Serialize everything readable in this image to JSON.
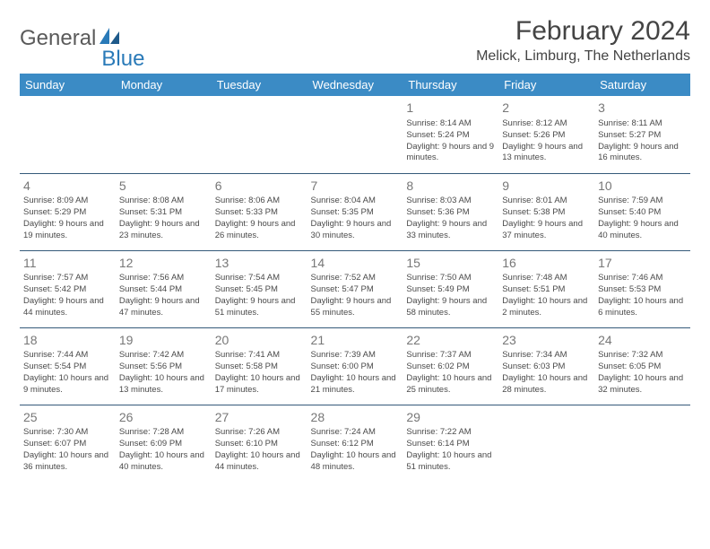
{
  "logo": {
    "part1": "General",
    "part2": "Blue"
  },
  "title": "February 2024",
  "location": "Melick, Limburg, The Netherlands",
  "colors": {
    "header_bg": "#3b8bc5",
    "header_text": "#ffffff",
    "row_border": "#355a7a",
    "logo_gray": "#5a5a5a",
    "logo_blue": "#2a7ab8"
  },
  "day_headers": [
    "Sunday",
    "Monday",
    "Tuesday",
    "Wednesday",
    "Thursday",
    "Friday",
    "Saturday"
  ],
  "weeks": [
    [
      null,
      null,
      null,
      null,
      {
        "n": "1",
        "sr": "8:14 AM",
        "ss": "5:24 PM",
        "dl": "9 hours and 9 minutes."
      },
      {
        "n": "2",
        "sr": "8:12 AM",
        "ss": "5:26 PM",
        "dl": "9 hours and 13 minutes."
      },
      {
        "n": "3",
        "sr": "8:11 AM",
        "ss": "5:27 PM",
        "dl": "9 hours and 16 minutes."
      }
    ],
    [
      {
        "n": "4",
        "sr": "8:09 AM",
        "ss": "5:29 PM",
        "dl": "9 hours and 19 minutes."
      },
      {
        "n": "5",
        "sr": "8:08 AM",
        "ss": "5:31 PM",
        "dl": "9 hours and 23 minutes."
      },
      {
        "n": "6",
        "sr": "8:06 AM",
        "ss": "5:33 PM",
        "dl": "9 hours and 26 minutes."
      },
      {
        "n": "7",
        "sr": "8:04 AM",
        "ss": "5:35 PM",
        "dl": "9 hours and 30 minutes."
      },
      {
        "n": "8",
        "sr": "8:03 AM",
        "ss": "5:36 PM",
        "dl": "9 hours and 33 minutes."
      },
      {
        "n": "9",
        "sr": "8:01 AM",
        "ss": "5:38 PM",
        "dl": "9 hours and 37 minutes."
      },
      {
        "n": "10",
        "sr": "7:59 AM",
        "ss": "5:40 PM",
        "dl": "9 hours and 40 minutes."
      }
    ],
    [
      {
        "n": "11",
        "sr": "7:57 AM",
        "ss": "5:42 PM",
        "dl": "9 hours and 44 minutes."
      },
      {
        "n": "12",
        "sr": "7:56 AM",
        "ss": "5:44 PM",
        "dl": "9 hours and 47 minutes."
      },
      {
        "n": "13",
        "sr": "7:54 AM",
        "ss": "5:45 PM",
        "dl": "9 hours and 51 minutes."
      },
      {
        "n": "14",
        "sr": "7:52 AM",
        "ss": "5:47 PM",
        "dl": "9 hours and 55 minutes."
      },
      {
        "n": "15",
        "sr": "7:50 AM",
        "ss": "5:49 PM",
        "dl": "9 hours and 58 minutes."
      },
      {
        "n": "16",
        "sr": "7:48 AM",
        "ss": "5:51 PM",
        "dl": "10 hours and 2 minutes."
      },
      {
        "n": "17",
        "sr": "7:46 AM",
        "ss": "5:53 PM",
        "dl": "10 hours and 6 minutes."
      }
    ],
    [
      {
        "n": "18",
        "sr": "7:44 AM",
        "ss": "5:54 PM",
        "dl": "10 hours and 9 minutes."
      },
      {
        "n": "19",
        "sr": "7:42 AM",
        "ss": "5:56 PM",
        "dl": "10 hours and 13 minutes."
      },
      {
        "n": "20",
        "sr": "7:41 AM",
        "ss": "5:58 PM",
        "dl": "10 hours and 17 minutes."
      },
      {
        "n": "21",
        "sr": "7:39 AM",
        "ss": "6:00 PM",
        "dl": "10 hours and 21 minutes."
      },
      {
        "n": "22",
        "sr": "7:37 AM",
        "ss": "6:02 PM",
        "dl": "10 hours and 25 minutes."
      },
      {
        "n": "23",
        "sr": "7:34 AM",
        "ss": "6:03 PM",
        "dl": "10 hours and 28 minutes."
      },
      {
        "n": "24",
        "sr": "7:32 AM",
        "ss": "6:05 PM",
        "dl": "10 hours and 32 minutes."
      }
    ],
    [
      {
        "n": "25",
        "sr": "7:30 AM",
        "ss": "6:07 PM",
        "dl": "10 hours and 36 minutes."
      },
      {
        "n": "26",
        "sr": "7:28 AM",
        "ss": "6:09 PM",
        "dl": "10 hours and 40 minutes."
      },
      {
        "n": "27",
        "sr": "7:26 AM",
        "ss": "6:10 PM",
        "dl": "10 hours and 44 minutes."
      },
      {
        "n": "28",
        "sr": "7:24 AM",
        "ss": "6:12 PM",
        "dl": "10 hours and 48 minutes."
      },
      {
        "n": "29",
        "sr": "7:22 AM",
        "ss": "6:14 PM",
        "dl": "10 hours and 51 minutes."
      },
      null,
      null
    ]
  ],
  "labels": {
    "sunrise": "Sunrise:",
    "sunset": "Sunset:",
    "daylight": "Daylight:"
  }
}
